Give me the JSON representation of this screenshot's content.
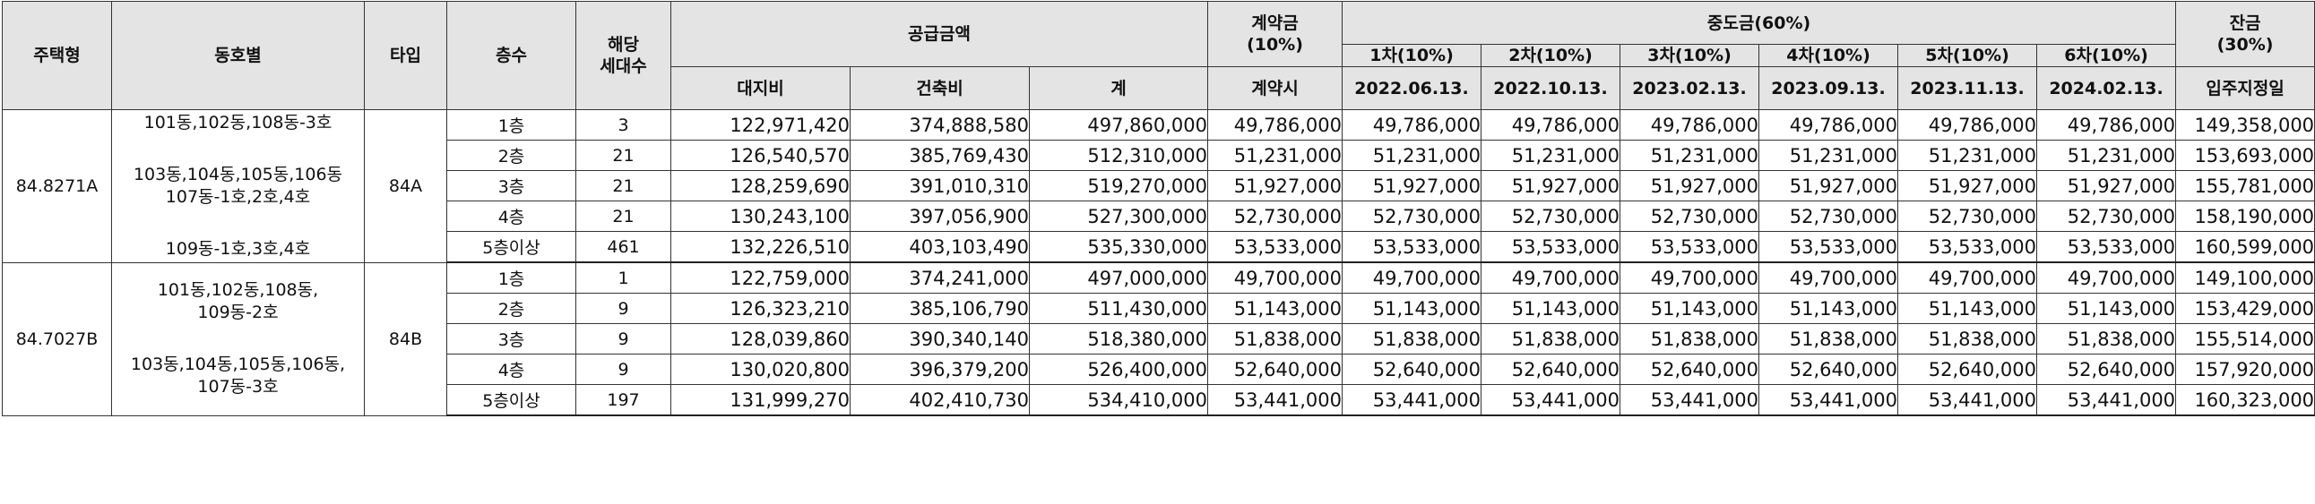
{
  "header": {
    "housing_type": "주택형",
    "dong_ho": "동호별",
    "type": "타입",
    "floor": "층수",
    "units_line1": "해당",
    "units_line2": "세대수",
    "supply": "공급금액",
    "land": "대지비",
    "building": "건축비",
    "total": "계",
    "contract_line1": "계약금",
    "contract_line2": "(10%)",
    "contract_when": "계약시",
    "middle": "중도금(60%)",
    "middle_cols": [
      {
        "label": "1차(10%)",
        "date": "2022.06.13."
      },
      {
        "label": "2차(10%)",
        "date": "2022.10.13."
      },
      {
        "label": "3차(10%)",
        "date": "2023.02.13."
      },
      {
        "label": "4차(10%)",
        "date": "2023.09.13."
      },
      {
        "label": "5차(10%)",
        "date": "2023.11.13."
      },
      {
        "label": "6차(10%)",
        "date": "2024.02.13."
      }
    ],
    "balance_line1": "잔금",
    "balance_line2": "(30%)",
    "balance_when": "입주지정일"
  },
  "groups": [
    {
      "housing_type": "84.8271A",
      "type": "84A",
      "dong_lines": [
        [
          "101동,102동,108동-3호"
        ],
        [
          "103동,104동,105동,106동",
          "107동-1호,2호,4호"
        ],
        [
          "109동-1호,3호,4호"
        ]
      ],
      "rows": [
        {
          "floor": "1층",
          "units": "3",
          "land": "122,971,420",
          "building": "374,888,580",
          "total": "497,860,000",
          "contract": "49,786,000",
          "m1": "49,786,000",
          "m2": "49,786,000",
          "m3": "49,786,000",
          "m4": "49,786,000",
          "m5": "49,786,000",
          "m6": "49,786,000",
          "balance": "149,358,000"
        },
        {
          "floor": "2층",
          "units": "21",
          "land": "126,540,570",
          "building": "385,769,430",
          "total": "512,310,000",
          "contract": "51,231,000",
          "m1": "51,231,000",
          "m2": "51,231,000",
          "m3": "51,231,000",
          "m4": "51,231,000",
          "m5": "51,231,000",
          "m6": "51,231,000",
          "balance": "153,693,000"
        },
        {
          "floor": "3층",
          "units": "21",
          "land": "128,259,690",
          "building": "391,010,310",
          "total": "519,270,000",
          "contract": "51,927,000",
          "m1": "51,927,000",
          "m2": "51,927,000",
          "m3": "51,927,000",
          "m4": "51,927,000",
          "m5": "51,927,000",
          "m6": "51,927,000",
          "balance": "155,781,000"
        },
        {
          "floor": "4층",
          "units": "21",
          "land": "130,243,100",
          "building": "397,056,900",
          "total": "527,300,000",
          "contract": "52,730,000",
          "m1": "52,730,000",
          "m2": "52,730,000",
          "m3": "52,730,000",
          "m4": "52,730,000",
          "m5": "52,730,000",
          "m6": "52,730,000",
          "balance": "158,190,000"
        },
        {
          "floor": "5층이상",
          "units": "461",
          "land": "132,226,510",
          "building": "403,103,490",
          "total": "535,330,000",
          "contract": "53,533,000",
          "m1": "53,533,000",
          "m2": "53,533,000",
          "m3": "53,533,000",
          "m4": "53,533,000",
          "m5": "53,533,000",
          "m6": "53,533,000",
          "balance": "160,599,000"
        }
      ]
    },
    {
      "housing_type": "84.7027B",
      "type": "84B",
      "dong_lines": [
        [
          "101동,102동,108동,",
          "109동-2호"
        ],
        [
          "103동,104동,105동,106동,",
          "107동-3호"
        ]
      ],
      "rows": [
        {
          "floor": "1층",
          "units": "1",
          "land": "122,759,000",
          "building": "374,241,000",
          "total": "497,000,000",
          "contract": "49,700,000",
          "m1": "49,700,000",
          "m2": "49,700,000",
          "m3": "49,700,000",
          "m4": "49,700,000",
          "m5": "49,700,000",
          "m6": "49,700,000",
          "balance": "149,100,000"
        },
        {
          "floor": "2층",
          "units": "9",
          "land": "126,323,210",
          "building": "385,106,790",
          "total": "511,430,000",
          "contract": "51,143,000",
          "m1": "51,143,000",
          "m2": "51,143,000",
          "m3": "51,143,000",
          "m4": "51,143,000",
          "m5": "51,143,000",
          "m6": "51,143,000",
          "balance": "153,429,000"
        },
        {
          "floor": "3층",
          "units": "9",
          "land": "128,039,860",
          "building": "390,340,140",
          "total": "518,380,000",
          "contract": "51,838,000",
          "m1": "51,838,000",
          "m2": "51,838,000",
          "m3": "51,838,000",
          "m4": "51,838,000",
          "m5": "51,838,000",
          "m6": "51,838,000",
          "balance": "155,514,000"
        },
        {
          "floor": "4층",
          "units": "9",
          "land": "130,020,800",
          "building": "396,379,200",
          "total": "526,400,000",
          "contract": "52,640,000",
          "m1": "52,640,000",
          "m2": "52,640,000",
          "m3": "52,640,000",
          "m4": "52,640,000",
          "m5": "52,640,000",
          "m6": "52,640,000",
          "balance": "157,920,000"
        },
        {
          "floor": "5층이상",
          "units": "197",
          "land": "131,999,270",
          "building": "402,410,730",
          "total": "534,410,000",
          "contract": "53,441,000",
          "m1": "53,441,000",
          "m2": "53,441,000",
          "m3": "53,441,000",
          "m4": "53,441,000",
          "m5": "53,441,000",
          "m6": "53,441,000",
          "balance": "160,323,000"
        }
      ]
    }
  ]
}
